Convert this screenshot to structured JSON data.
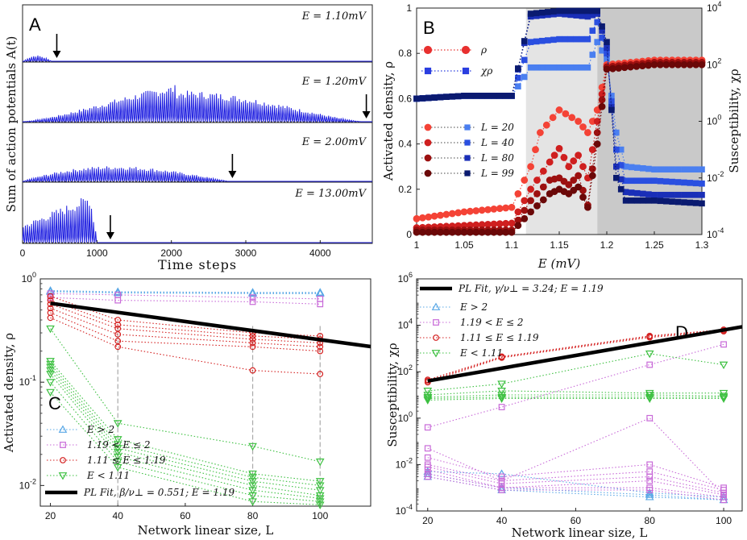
{
  "chart_data": [
    {
      "panel": "A",
      "type": "line",
      "xlabel": "Time steps",
      "ylabel": "Sum of action potentials A(t)",
      "xlim": [
        0,
        4700
      ],
      "xticks": [
        "0",
        "1000",
        "2000",
        "3000",
        "4000"
      ],
      "color": "#1f1fe0",
      "subplots": [
        {
          "label": "E = 1.10mV",
          "start": 0,
          "end": 420,
          "peak_frac": 0.12,
          "stop_arrow": 460
        },
        {
          "label": "E = 1.20mV",
          "start": 0,
          "end": 4550,
          "peak_frac": 0.62,
          "stop_arrow": 4620
        },
        {
          "label": "E = 2.00mV",
          "start": 0,
          "end": 2750,
          "peak_frac": 0.32,
          "stop_arrow": 2820
        },
        {
          "label": "E = 13.00mV",
          "start": 0,
          "end": 1000,
          "peak_frac": 0.85,
          "stop_arrow": 1180
        }
      ]
    },
    {
      "panel": "B",
      "type": "scatter",
      "xlabel": "E (mV)",
      "ylabel_left": "Activated density, ρ",
      "ylabel_right": "Susceptibility, χρ",
      "xlim": [
        1.0,
        1.3
      ],
      "ylim_left": [
        0,
        1
      ],
      "ylim_right_log10": [
        -4,
        4
      ],
      "xticks": [
        "1",
        "1.05",
        "1.1",
        "1.15",
        "1.2",
        "1.25",
        "1.3"
      ],
      "yticks_left": [
        "0",
        "0.2",
        "0.4",
        "0.6",
        "0.8",
        "1"
      ],
      "yticks_right": [
        "10^-4",
        "10^-2",
        "10^0",
        "10^2",
        "10^4"
      ],
      "shaded_regions": [
        {
          "from": 1.115,
          "to": 1.19,
          "color": "#e4e4e4"
        },
        {
          "from": 1.19,
          "to": 1.3,
          "color": "#c9c9c9"
        }
      ],
      "legend_markers": [
        {
          "label": "ρ",
          "color": "#e8302f",
          "marker": "circle"
        },
        {
          "label": "χρ",
          "color": "#2a3ee0",
          "marker": "square"
        }
      ],
      "series": [
        {
          "name": "L = 20",
          "rho_color": "#f44336",
          "chi_color": "#4a7ff0",
          "rho": [
            [
              1.0,
              0.07
            ],
            [
              1.05,
              0.1
            ],
            [
              1.1,
              0.12
            ],
            [
              1.12,
              0.3
            ],
            [
              1.13,
              0.45
            ],
            [
              1.15,
              0.55
            ],
            [
              1.17,
              0.5
            ],
            [
              1.18,
              0.45
            ],
            [
              1.19,
              0.55
            ],
            [
              1.2,
              0.75
            ],
            [
              1.25,
              0.77
            ],
            [
              1.3,
              0.77
            ]
          ],
          "chi_log10": [
            [
              1.0,
              0.8
            ],
            [
              1.05,
              0.9
            ],
            [
              1.1,
              0.9
            ],
            [
              1.12,
              1.9
            ],
            [
              1.15,
              1.9
            ],
            [
              1.18,
              1.9
            ],
            [
              1.19,
              2.8
            ],
            [
              1.2,
              2.2
            ],
            [
              1.21,
              -0.4
            ],
            [
              1.22,
              -1.6
            ],
            [
              1.25,
              -1.7
            ],
            [
              1.3,
              -1.7
            ]
          ]
        },
        {
          "name": "L = 40",
          "rho_color": "#cf1f1f",
          "chi_color": "#2a4fe0",
          "rho": [
            [
              1.0,
              0.03
            ],
            [
              1.05,
              0.04
            ],
            [
              1.1,
              0.05
            ],
            [
              1.12,
              0.2
            ],
            [
              1.14,
              0.32
            ],
            [
              1.15,
              0.38
            ],
            [
              1.16,
              0.3
            ],
            [
              1.17,
              0.35
            ],
            [
              1.18,
              0.25
            ],
            [
              1.19,
              0.5
            ],
            [
              1.2,
              0.74
            ],
            [
              1.25,
              0.76
            ],
            [
              1.3,
              0.76
            ]
          ],
          "chi_log10": [
            [
              1.0,
              0.8
            ],
            [
              1.05,
              0.9
            ],
            [
              1.1,
              0.9
            ],
            [
              1.12,
              2.8
            ],
            [
              1.15,
              2.9
            ],
            [
              1.18,
              2.9
            ],
            [
              1.19,
              3.5
            ],
            [
              1.2,
              2.4
            ],
            [
              1.21,
              -1.0
            ],
            [
              1.22,
              -2.1
            ],
            [
              1.25,
              -2.1
            ],
            [
              1.3,
              -2.2
            ]
          ]
        },
        {
          "name": "L = 80",
          "rho_color": "#9c1010",
          "chi_color": "#1a2fb8",
          "rho": [
            [
              1.0,
              0.02
            ],
            [
              1.05,
              0.02
            ],
            [
              1.1,
              0.02
            ],
            [
              1.12,
              0.15
            ],
            [
              1.14,
              0.24
            ],
            [
              1.15,
              0.25
            ],
            [
              1.16,
              0.22
            ],
            [
              1.17,
              0.26
            ],
            [
              1.18,
              0.13
            ],
            [
              1.19,
              0.45
            ],
            [
              1.2,
              0.74
            ],
            [
              1.25,
              0.76
            ],
            [
              1.3,
              0.76
            ]
          ],
          "chi_log10": [
            [
              1.0,
              0.8
            ],
            [
              1.05,
              0.9
            ],
            [
              1.1,
              0.9
            ],
            [
              1.12,
              3.7
            ],
            [
              1.15,
              3.8
            ],
            [
              1.18,
              3.7
            ],
            [
              1.19,
              3.8
            ],
            [
              1.2,
              2.6
            ],
            [
              1.21,
              -1.6
            ],
            [
              1.22,
              -2.5
            ],
            [
              1.25,
              -2.6
            ],
            [
              1.3,
              -2.6
            ]
          ]
        },
        {
          "name": "L = 99",
          "rho_color": "#6b0808",
          "chi_color": "#0a1a70",
          "rho": [
            [
              1.0,
              0.01
            ],
            [
              1.05,
              0.01
            ],
            [
              1.1,
              0.01
            ],
            [
              1.12,
              0.1
            ],
            [
              1.14,
              0.18
            ],
            [
              1.15,
              0.2
            ],
            [
              1.16,
              0.18
            ],
            [
              1.17,
              0.21
            ],
            [
              1.18,
              0.12
            ],
            [
              1.19,
              0.4
            ],
            [
              1.2,
              0.73
            ],
            [
              1.25,
              0.75
            ],
            [
              1.3,
              0.75
            ]
          ],
          "chi_log10": [
            [
              1.0,
              0.8
            ],
            [
              1.05,
              0.9
            ],
            [
              1.1,
              0.9
            ],
            [
              1.12,
              3.8
            ],
            [
              1.15,
              3.9
            ],
            [
              1.18,
              3.9
            ],
            [
              1.19,
              3.9
            ],
            [
              1.2,
              2.8
            ],
            [
              1.21,
              -2.0
            ],
            [
              1.22,
              -2.8
            ],
            [
              1.25,
              -2.8
            ],
            [
              1.3,
              -2.9
            ]
          ]
        }
      ]
    },
    {
      "panel": "C",
      "type": "line",
      "xlabel": "Network linear size, L",
      "ylabel": "Activated density, ρ",
      "x": [
        20,
        40,
        80,
        100
      ],
      "xlim": [
        17,
        115
      ],
      "ylim_log10": [
        -2.2,
        0
      ],
      "xticks": [
        "20",
        "40",
        "60",
        "80",
        "100"
      ],
      "yticks": [
        "10^-2",
        "10^-1",
        "10^0"
      ],
      "legend": [
        {
          "label": "E > 2",
          "color": "#5aa8e6",
          "marker": "triangle-up"
        },
        {
          "label": "1.19 < E ≤ 2",
          "color": "#c86ad8",
          "marker": "square"
        },
        {
          "label": "1.11 ≤ E ≤ 1.19",
          "color": "#d42020",
          "marker": "circle"
        },
        {
          "label": "E < 1.11",
          "color": "#3cc040",
          "marker": "triangle-down"
        }
      ],
      "fit": {
        "label": "PL Fit, β/ν⊥ = 0.551; E = 1.19",
        "y_at_20": 0.58,
        "exponent": -0.551
      },
      "groups": [
        {
          "color": "#5aa8e6",
          "marker": "triangle-up",
          "lines": [
            [
              0.77,
              0.75,
              0.74,
              0.74
            ],
            [
              0.76,
              0.74,
              0.73,
              0.73
            ],
            [
              0.75,
              0.73,
              0.72,
              0.72
            ]
          ]
        },
        {
          "color": "#c86ad8",
          "marker": "square",
          "lines": [
            [
              0.72,
              0.7,
              0.66,
              0.64
            ],
            [
              0.66,
              0.62,
              0.6,
              0.57
            ]
          ]
        },
        {
          "color": "#d42020",
          "marker": "circle",
          "lines": [
            [
              0.68,
              0.4,
              0.3,
              0.28
            ],
            [
              0.62,
              0.36,
              0.28,
              0.26
            ],
            [
              0.57,
              0.33,
              0.26,
              0.24
            ],
            [
              0.52,
              0.29,
              0.24,
              0.22
            ],
            [
              0.47,
              0.25,
              0.22,
              0.2
            ],
            [
              0.42,
              0.22,
              0.13,
              0.12
            ]
          ]
        },
        {
          "color": "#3cc040",
          "marker": "triangle-down",
          "lines": [
            [
              0.33,
              0.04,
              0.024,
              0.017
            ],
            [
              0.16,
              0.028,
              0.013,
              0.011
            ],
            [
              0.15,
              0.025,
              0.012,
              0.01
            ],
            [
              0.14,
              0.023,
              0.011,
              0.009
            ],
            [
              0.13,
              0.021,
              0.01,
              0.008
            ],
            [
              0.12,
              0.019,
              0.009,
              0.0075
            ],
            [
              0.1,
              0.017,
              0.008,
              0.007
            ],
            [
              0.08,
              0.015,
              0.007,
              0.0065
            ]
          ]
        }
      ]
    },
    {
      "panel": "D",
      "type": "line",
      "xlabel": "Network linear size, L",
      "ylabel": "Susceptibility, χρ",
      "x": [
        20,
        40,
        80,
        100
      ],
      "xlim": [
        17,
        105
      ],
      "ylim_log10": [
        -4,
        6
      ],
      "xticks": [
        "20",
        "40",
        "60",
        "80",
        "100"
      ],
      "yticks": [
        "10^-4",
        "10^-2",
        "10^0",
        "10^2",
        "10^4",
        "10^6"
      ],
      "legend": [
        {
          "label": "E > 2",
          "color": "#5aa8e6",
          "marker": "triangle-up"
        },
        {
          "label": "1.19 < E ≤ 2",
          "color": "#c86ad8",
          "marker": "square"
        },
        {
          "label": "1.11 ≤ E ≤ 1.19",
          "color": "#d42020",
          "marker": "circle"
        },
        {
          "label": "E < 1.11",
          "color": "#3cc040",
          "marker": "triangle-down"
        }
      ],
      "fit": {
        "label": "PL Fit, γ/ν⊥ = 3.24; E = 1.19",
        "y_at_20": 40,
        "exponent": 3.24
      },
      "groups": [
        {
          "color": "#5aa8e6",
          "marker": "triangle-up",
          "lines": [
            [
              0.003,
              0.0008,
              0.0004,
              0.0003
            ],
            [
              0.004,
              0.001,
              0.0005,
              0.0003
            ],
            [
              0.005,
              0.004,
              0.0006,
              0.0004
            ]
          ]
        },
        {
          "color": "#c86ad8",
          "marker": "square",
          "lines": [
            [
              0.4,
              3,
              200,
              1500
            ],
            [
              0.05,
              0.002,
              1,
              0.0005
            ],
            [
              0.02,
              0.003,
              0.01,
              0.001
            ],
            [
              0.01,
              0.002,
              0.005,
              0.0008
            ],
            [
              0.008,
              0.0015,
              0.003,
              0.0006
            ],
            [
              0.006,
              0.001,
              0.002,
              0.0005
            ],
            [
              0.004,
              0.001,
              0.001,
              0.0004
            ],
            [
              0.003,
              0.0008,
              0.0008,
              0.0003
            ]
          ]
        },
        {
          "color": "#d42020",
          "marker": "circle",
          "lines": [
            [
              45,
              450,
              3500,
              6500
            ],
            [
              40,
              420,
              3300,
              6000
            ],
            [
              35,
              400,
              3000,
              5500
            ]
          ]
        },
        {
          "color": "#3cc040",
          "marker": "triangle-down",
          "lines": [
            [
              15,
              30,
              600,
              200
            ],
            [
              10,
              15,
              12,
              12
            ],
            [
              8,
              10,
              10,
              9
            ],
            [
              7,
              8,
              8,
              8
            ],
            [
              6,
              7,
              7,
              7
            ]
          ]
        }
      ]
    }
  ]
}
